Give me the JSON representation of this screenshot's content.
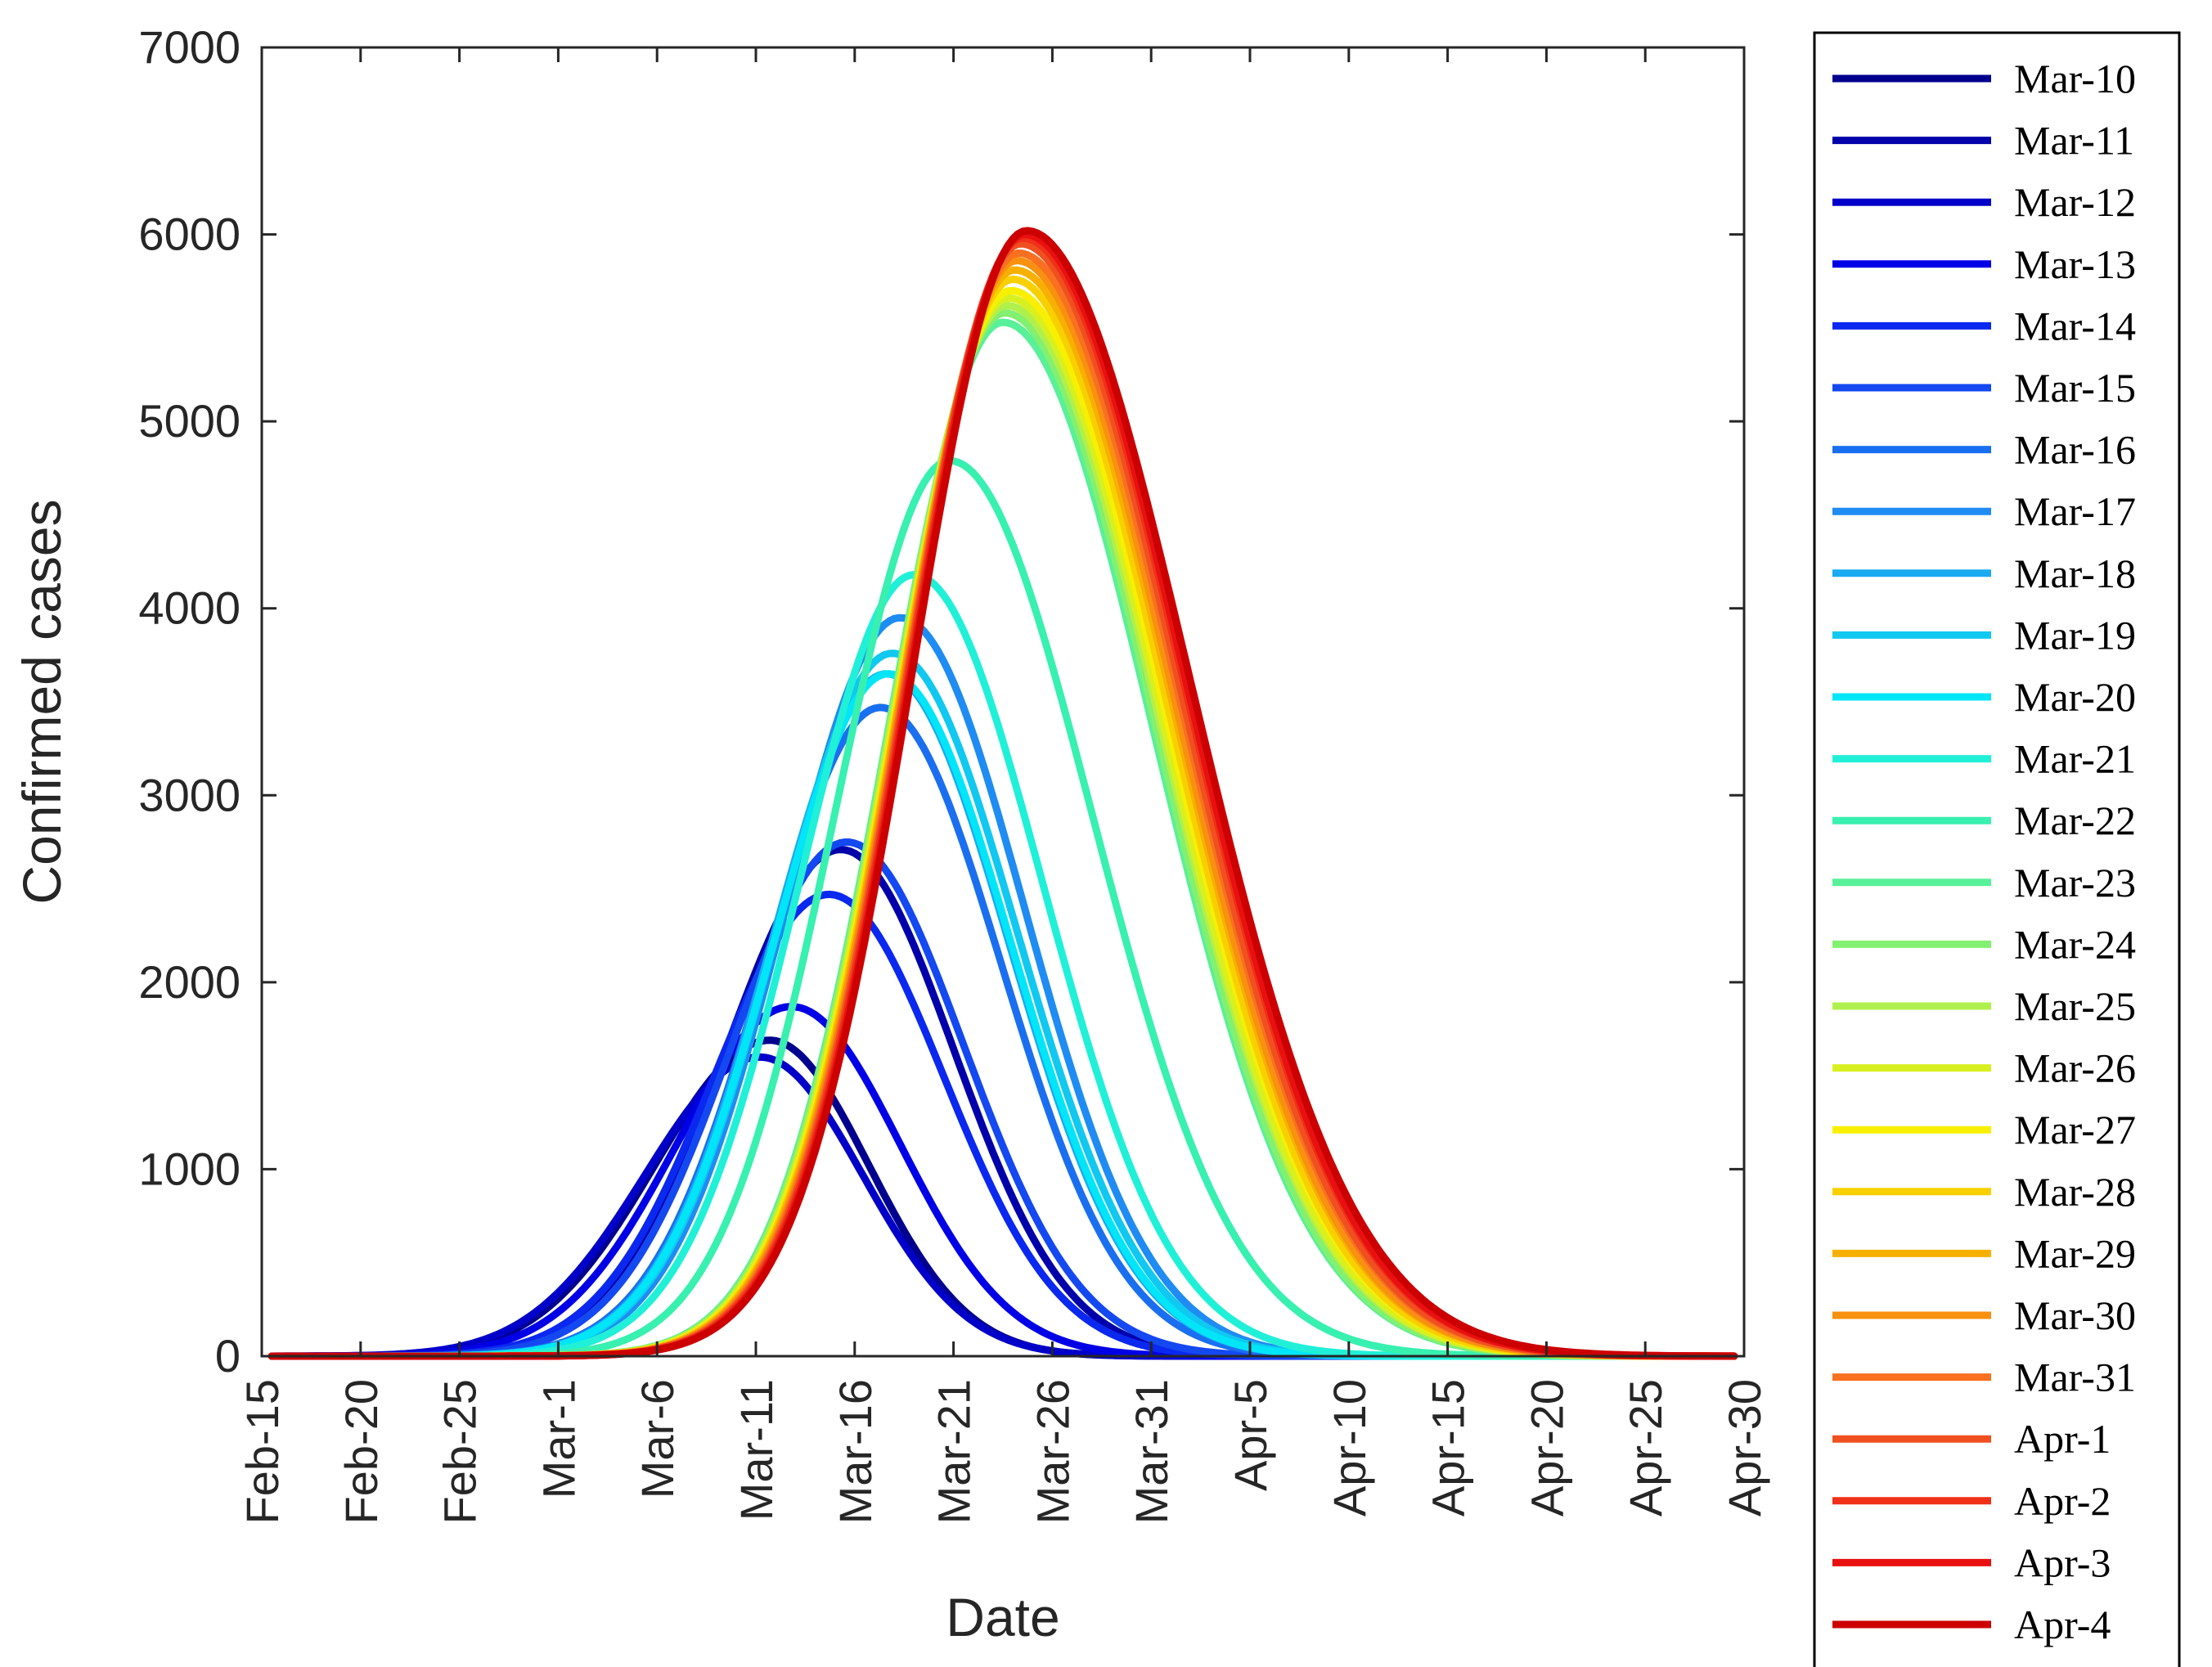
{
  "chart_data": {
    "type": "line",
    "title": "",
    "xlabel": "Date",
    "ylabel": "Confirmed cases",
    "x_start": "Feb-15",
    "x_end": "Apr-30",
    "x_range_days": [
      0,
      75
    ],
    "x_ticks": [
      {
        "day": 0,
        "label": "Feb-15"
      },
      {
        "day": 5,
        "label": "Feb-20"
      },
      {
        "day": 10,
        "label": "Feb-25"
      },
      {
        "day": 15,
        "label": "Mar-1"
      },
      {
        "day": 20,
        "label": "Mar-6"
      },
      {
        "day": 25,
        "label": "Mar-11"
      },
      {
        "day": 30,
        "label": "Mar-16"
      },
      {
        "day": 35,
        "label": "Mar-21"
      },
      {
        "day": 40,
        "label": "Mar-26"
      },
      {
        "day": 45,
        "label": "Mar-31"
      },
      {
        "day": 50,
        "label": "Apr-5"
      },
      {
        "day": 55,
        "label": "Apr-10"
      },
      {
        "day": 60,
        "label": "Apr-15"
      },
      {
        "day": 65,
        "label": "Apr-20"
      },
      {
        "day": 70,
        "label": "Apr-25"
      },
      {
        "day": 75,
        "label": "Apr-30"
      }
    ],
    "ylim": [
      0,
      7000
    ],
    "y_ticks": [
      0,
      1000,
      2000,
      3000,
      4000,
      5000,
      6000,
      7000
    ],
    "grid": false,
    "legend_position": "outside-right",
    "curve_model": "gaussian-like epidemic curve: y = peak * exp(-((day - peak_day)^2) / (2 * width^2)), width_left = 5.8 days, width_right given per series",
    "series": [
      {
        "name": "Mar-10",
        "color": "#00008f",
        "peak": 1690,
        "peak_day": 25.7,
        "width_right": 5.0
      },
      {
        "name": "Mar-11",
        "color": "#0000aa",
        "peak": 2710,
        "peak_day": 29.3,
        "width_right": 5.7
      },
      {
        "name": "Mar-12",
        "color": "#0000c8",
        "peak": 1600,
        "peak_day": 25.2,
        "width_right": 5.2
      },
      {
        "name": "Mar-13",
        "color": "#0000e6",
        "peak": 1870,
        "peak_day": 26.8,
        "width_right": 5.5
      },
      {
        "name": "Mar-14",
        "color": "#0a28ef",
        "peak": 2470,
        "peak_day": 28.7,
        "width_right": 5.8
      },
      {
        "name": "Mar-15",
        "color": "#1448f0",
        "peak": 2750,
        "peak_day": 29.6,
        "width_right": 5.9
      },
      {
        "name": "Mar-16",
        "color": "#1a6ff0",
        "peak": 3470,
        "peak_day": 31.3,
        "width_right": 6.1
      },
      {
        "name": "Mar-17",
        "color": "#1e8cf2",
        "peak": 3950,
        "peak_day": 32.3,
        "width_right": 6.3
      },
      {
        "name": "Mar-18",
        "color": "#19aaf2",
        "peak": 3650,
        "peak_day": 31.6,
        "width_right": 6.2
      },
      {
        "name": "Mar-19",
        "color": "#10c8f0",
        "peak": 3760,
        "peak_day": 31.9,
        "width_right": 6.3
      },
      {
        "name": "Mar-20",
        "color": "#00e6f8",
        "peak": 3650,
        "peak_day": 31.7,
        "width_right": 6.2
      },
      {
        "name": "Mar-21",
        "color": "#20f0d8",
        "peak": 4180,
        "peak_day": 33.0,
        "width_right": 6.5
      },
      {
        "name": "Mar-22",
        "color": "#38f0b0",
        "peak": 4790,
        "peak_day": 34.8,
        "width_right": 7.2
      },
      {
        "name": "Mar-23",
        "color": "#58f098",
        "peak": 5530,
        "peak_day": 37.5,
        "width_right": 7.6
      },
      {
        "name": "Mar-24",
        "color": "#82f070",
        "peak": 5580,
        "peak_day": 37.6,
        "width_right": 7.6
      },
      {
        "name": "Mar-25",
        "color": "#b0f04c",
        "peak": 5620,
        "peak_day": 37.7,
        "width_right": 7.7
      },
      {
        "name": "Mar-26",
        "color": "#d8f020",
        "peak": 5660,
        "peak_day": 37.8,
        "width_right": 7.7
      },
      {
        "name": "Mar-27",
        "color": "#f8f000",
        "peak": 5700,
        "peak_day": 37.9,
        "width_right": 7.8
      },
      {
        "name": "Mar-28",
        "color": "#f8d000",
        "peak": 5760,
        "peak_day": 38.0,
        "width_right": 7.8
      },
      {
        "name": "Mar-29",
        "color": "#f8b000",
        "peak": 5810,
        "peak_day": 38.1,
        "width_right": 7.9
      },
      {
        "name": "Mar-30",
        "color": "#f89010",
        "peak": 5860,
        "peak_day": 38.2,
        "width_right": 7.9
      },
      {
        "name": "Mar-31",
        "color": "#f87020",
        "peak": 5900,
        "peak_day": 38.3,
        "width_right": 8.0
      },
      {
        "name": "Apr-1",
        "color": "#f05020",
        "peak": 5950,
        "peak_day": 38.4,
        "width_right": 8.0
      },
      {
        "name": "Apr-2",
        "color": "#f03018",
        "peak": 5980,
        "peak_day": 38.5,
        "width_right": 8.1
      },
      {
        "name": "Apr-3",
        "color": "#e81010",
        "peak": 6000,
        "peak_day": 38.6,
        "width_right": 8.1
      },
      {
        "name": "Apr-4",
        "color": "#cc0000",
        "peak": 6020,
        "peak_day": 38.7,
        "width_right": 8.2
      }
    ]
  }
}
